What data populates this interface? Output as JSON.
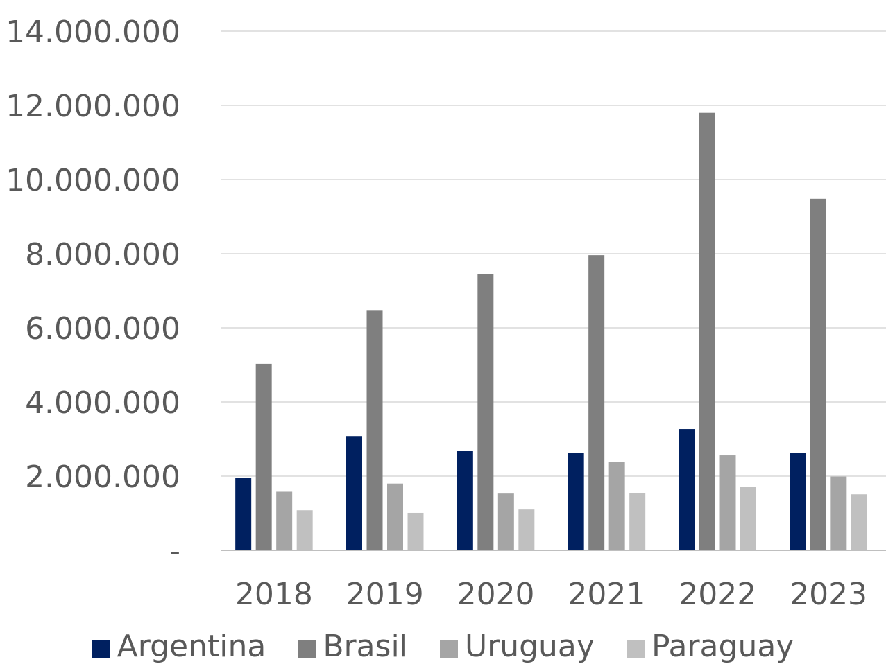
{
  "chart_data": {
    "type": "bar",
    "title": "",
    "xlabel": "",
    "ylabel": "",
    "categories": [
      "2018",
      "2019",
      "2020",
      "2021",
      "2022",
      "2023"
    ],
    "ylim": [
      0,
      14000000
    ],
    "yticks": [
      0,
      2000000,
      4000000,
      6000000,
      8000000,
      10000000,
      12000000,
      14000000
    ],
    "ytick_labels": [
      "-",
      "2.000.000",
      "4.000.000",
      "6.000.000",
      "8.000.000",
      "10.000.000",
      "12.000.000",
      "14.000.000"
    ],
    "grid": true,
    "legend_position": "bottom",
    "series": [
      {
        "name": "Argentina",
        "color": "#002060",
        "values": [
          1950000,
          3080000,
          2680000,
          2620000,
          3270000,
          2630000
        ]
      },
      {
        "name": "Brasil",
        "color": "#7f7f7f",
        "values": [
          5030000,
          6480000,
          7450000,
          7960000,
          11800000,
          9480000
        ]
      },
      {
        "name": "Uruguay",
        "color": "#a5a5a5",
        "values": [
          1580000,
          1800000,
          1530000,
          2390000,
          2560000,
          1990000
        ]
      },
      {
        "name": "Paraguay",
        "color": "#c0c0c0",
        "values": [
          1080000,
          1010000,
          1100000,
          1540000,
          1710000,
          1510000
        ]
      }
    ]
  }
}
